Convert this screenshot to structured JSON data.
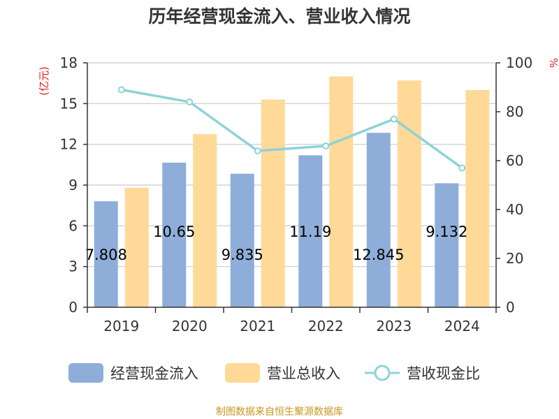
{
  "chart_data": {
    "type": "bar",
    "title": "历年经营现金流入、营业收入情况",
    "categories": [
      "2019",
      "2020",
      "2021",
      "2022",
      "2023",
      "2024"
    ],
    "series": [
      {
        "name": "经营现金流入",
        "kind": "bar",
        "axis": "left",
        "color": "#8eadd9",
        "values": [
          7.808,
          10.65,
          9.835,
          11.19,
          12.845,
          9.132
        ],
        "labels": [
          "7.808",
          "10.65",
          "9.835",
          "11.19",
          "12.845",
          "9.132"
        ]
      },
      {
        "name": "营业总收入",
        "kind": "bar",
        "axis": "left",
        "color": "#fed998",
        "values": [
          8.8,
          12.75,
          15.3,
          17.0,
          16.7,
          16.0
        ]
      },
      {
        "name": "营收现金比",
        "kind": "line",
        "axis": "right",
        "color": "#8cd3d9",
        "values": [
          89,
          84,
          64,
          66,
          77,
          57
        ]
      }
    ],
    "y_left": {
      "label": "(亿元)",
      "min": 0,
      "max": 18,
      "ticks": [
        0,
        3,
        6,
        9,
        12,
        15,
        18
      ]
    },
    "y_right": {
      "label": "%",
      "min": 0,
      "max": 100,
      "ticks": [
        0,
        20,
        40,
        60,
        80,
        100
      ]
    },
    "grid": true,
    "legend_position": "bottom"
  },
  "source": "制图数据来自恒生聚源数据库"
}
